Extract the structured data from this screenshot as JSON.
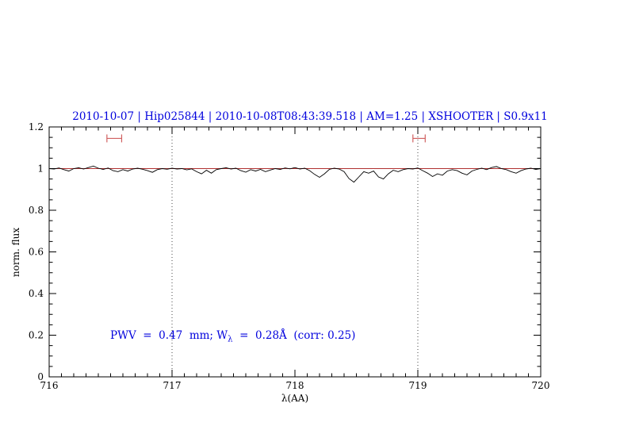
{
  "colors": {
    "title": "#0000dd",
    "annotation": "#0000dd",
    "spectrum": "#000000",
    "continuum": "#b03030",
    "range_marker": "#d06060",
    "vline": "#444444",
    "frame": "#000000"
  },
  "annotation": {
    "prefix": "PWV  =  0.47  mm; W",
    "sub": "λ",
    "suffix": "  =  0.28Å  (corr: 0.25)"
  },
  "chart_data": {
    "type": "line",
    "title": "2010-10-07 | Hip025844 | 2010-10-08T08:43:39.518 | AM=1.25 | XSHOOTER | S0.9x11",
    "xlabel": "λ(AA)",
    "ylabel": "norm. flux",
    "xlim": [
      716,
      720
    ],
    "ylim": [
      0,
      1.2
    ],
    "xticks": [
      716,
      717,
      718,
      719,
      720
    ],
    "xtick_labels": [
      "716",
      "717",
      "718",
      "719",
      "720"
    ],
    "yticks": [
      0,
      0.2,
      0.4,
      0.6,
      0.8,
      1,
      1.2
    ],
    "ytick_labels": [
      "0",
      "0.2",
      "0.4",
      "0.6",
      "0.8",
      "1",
      "1.2"
    ],
    "x_minor_step": 0.1,
    "y_minor_step": 0.05,
    "grid": "off",
    "legend": "none",
    "vlines": [
      717,
      719
    ],
    "continuum": {
      "y": 1.0,
      "x1": 716,
      "x2": 720
    },
    "range_markers": [
      {
        "x1": 716.47,
        "x2": 716.59,
        "y": 1.145
      },
      {
        "x1": 718.96,
        "x2": 719.06,
        "y": 1.145
      }
    ],
    "series": [
      {
        "name": "spectrum",
        "x_start": 716.0,
        "x_step": 0.04,
        "y": [
          1.0,
          0.998,
          1.003,
          0.995,
          0.988,
          1.0,
          1.004,
          0.998,
          1.005,
          1.012,
          1.002,
          0.996,
          1.003,
          0.99,
          0.985,
          0.995,
          0.988,
          0.998,
          1.002,
          0.997,
          0.99,
          0.982,
          0.995,
          1.0,
          0.997,
          1.002,
          0.998,
          1.0,
          0.994,
          0.999,
          0.985,
          0.975,
          0.992,
          0.978,
          0.995,
          1.0,
          1.004,
          0.998,
          1.002,
          0.99,
          0.983,
          0.995,
          0.988,
          0.996,
          0.985,
          0.993,
          1.0,
          0.996,
          1.003,
          0.999,
          1.005,
          0.998,
          1.002,
          0.99,
          0.972,
          0.958,
          0.975,
          0.996,
          1.002,
          0.998,
          0.985,
          0.952,
          0.935,
          0.96,
          0.985,
          0.978,
          0.988,
          0.96,
          0.95,
          0.975,
          0.992,
          0.985,
          0.995,
          1.0,
          0.998,
          1.003,
          0.99,
          0.978,
          0.962,
          0.975,
          0.968,
          0.988,
          0.995,
          0.99,
          0.978,
          0.97,
          0.988,
          0.996,
          1.002,
          0.995,
          1.005,
          1.01,
          1.0,
          0.995,
          0.985,
          0.978,
          0.99,
          0.998,
          1.002,
          0.996,
          1.0
        ]
      }
    ]
  }
}
